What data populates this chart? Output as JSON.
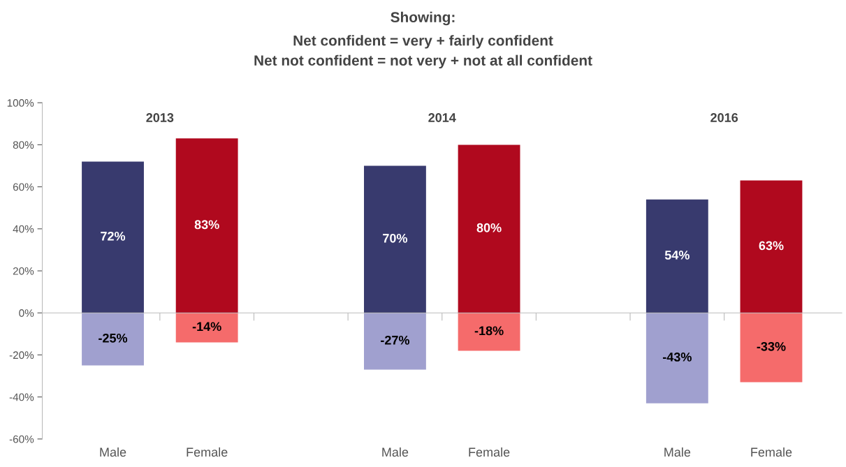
{
  "chart_data": {
    "type": "bar",
    "stacked": true,
    "title": "Showing:",
    "subtitle": "Net confident = very + fairly confident\nNet not confident = not very + not at all confident",
    "categories": [
      "Male",
      "Female",
      null,
      "Male",
      "Female",
      null,
      "Male",
      "Female"
    ],
    "series": [
      {
        "colors": [
          "#383a6e",
          "#b0091e",
          null,
          "#383a6e",
          "#b0091e",
          null,
          "#383a6e",
          "#b0091e"
        ],
        "values": [
          72,
          83,
          null,
          70,
          80,
          null,
          54,
          63
        ],
        "value_labels": [
          "72%",
          "83%",
          null,
          "70%",
          "80%",
          null,
          "54%",
          "63%"
        ]
      },
      {
        "colors": [
          "#a0a0cf",
          "#f56b6b",
          null,
          "#a0a0cf",
          "#f56b6b",
          null,
          "#a0a0cf",
          "#f56b6b"
        ],
        "values": [
          -25,
          -14,
          null,
          -27,
          -18,
          null,
          -43,
          -33
        ],
        "value_labels": [
          "-25%",
          "-14%",
          null,
          "-27%",
          "-18%",
          null,
          "-43%",
          "-33%"
        ]
      }
    ],
    "annotations": [
      "2013",
      "2014",
      "2016"
    ],
    "ylim": [
      -60,
      100
    ],
    "yticks": [
      {
        "value": -60,
        "label": "-60%"
      },
      {
        "value": -40,
        "label": "-40%"
      },
      {
        "value": -20,
        "label": "-20%"
      },
      {
        "value": 0,
        "label": "0%"
      },
      {
        "value": 20,
        "label": "20%"
      },
      {
        "value": 40,
        "label": "40%"
      },
      {
        "value": 60,
        "label": "60%"
      },
      {
        "value": 80,
        "label": "80%"
      },
      {
        "value": 100,
        "label": "100%"
      }
    ],
    "legend": false
  }
}
